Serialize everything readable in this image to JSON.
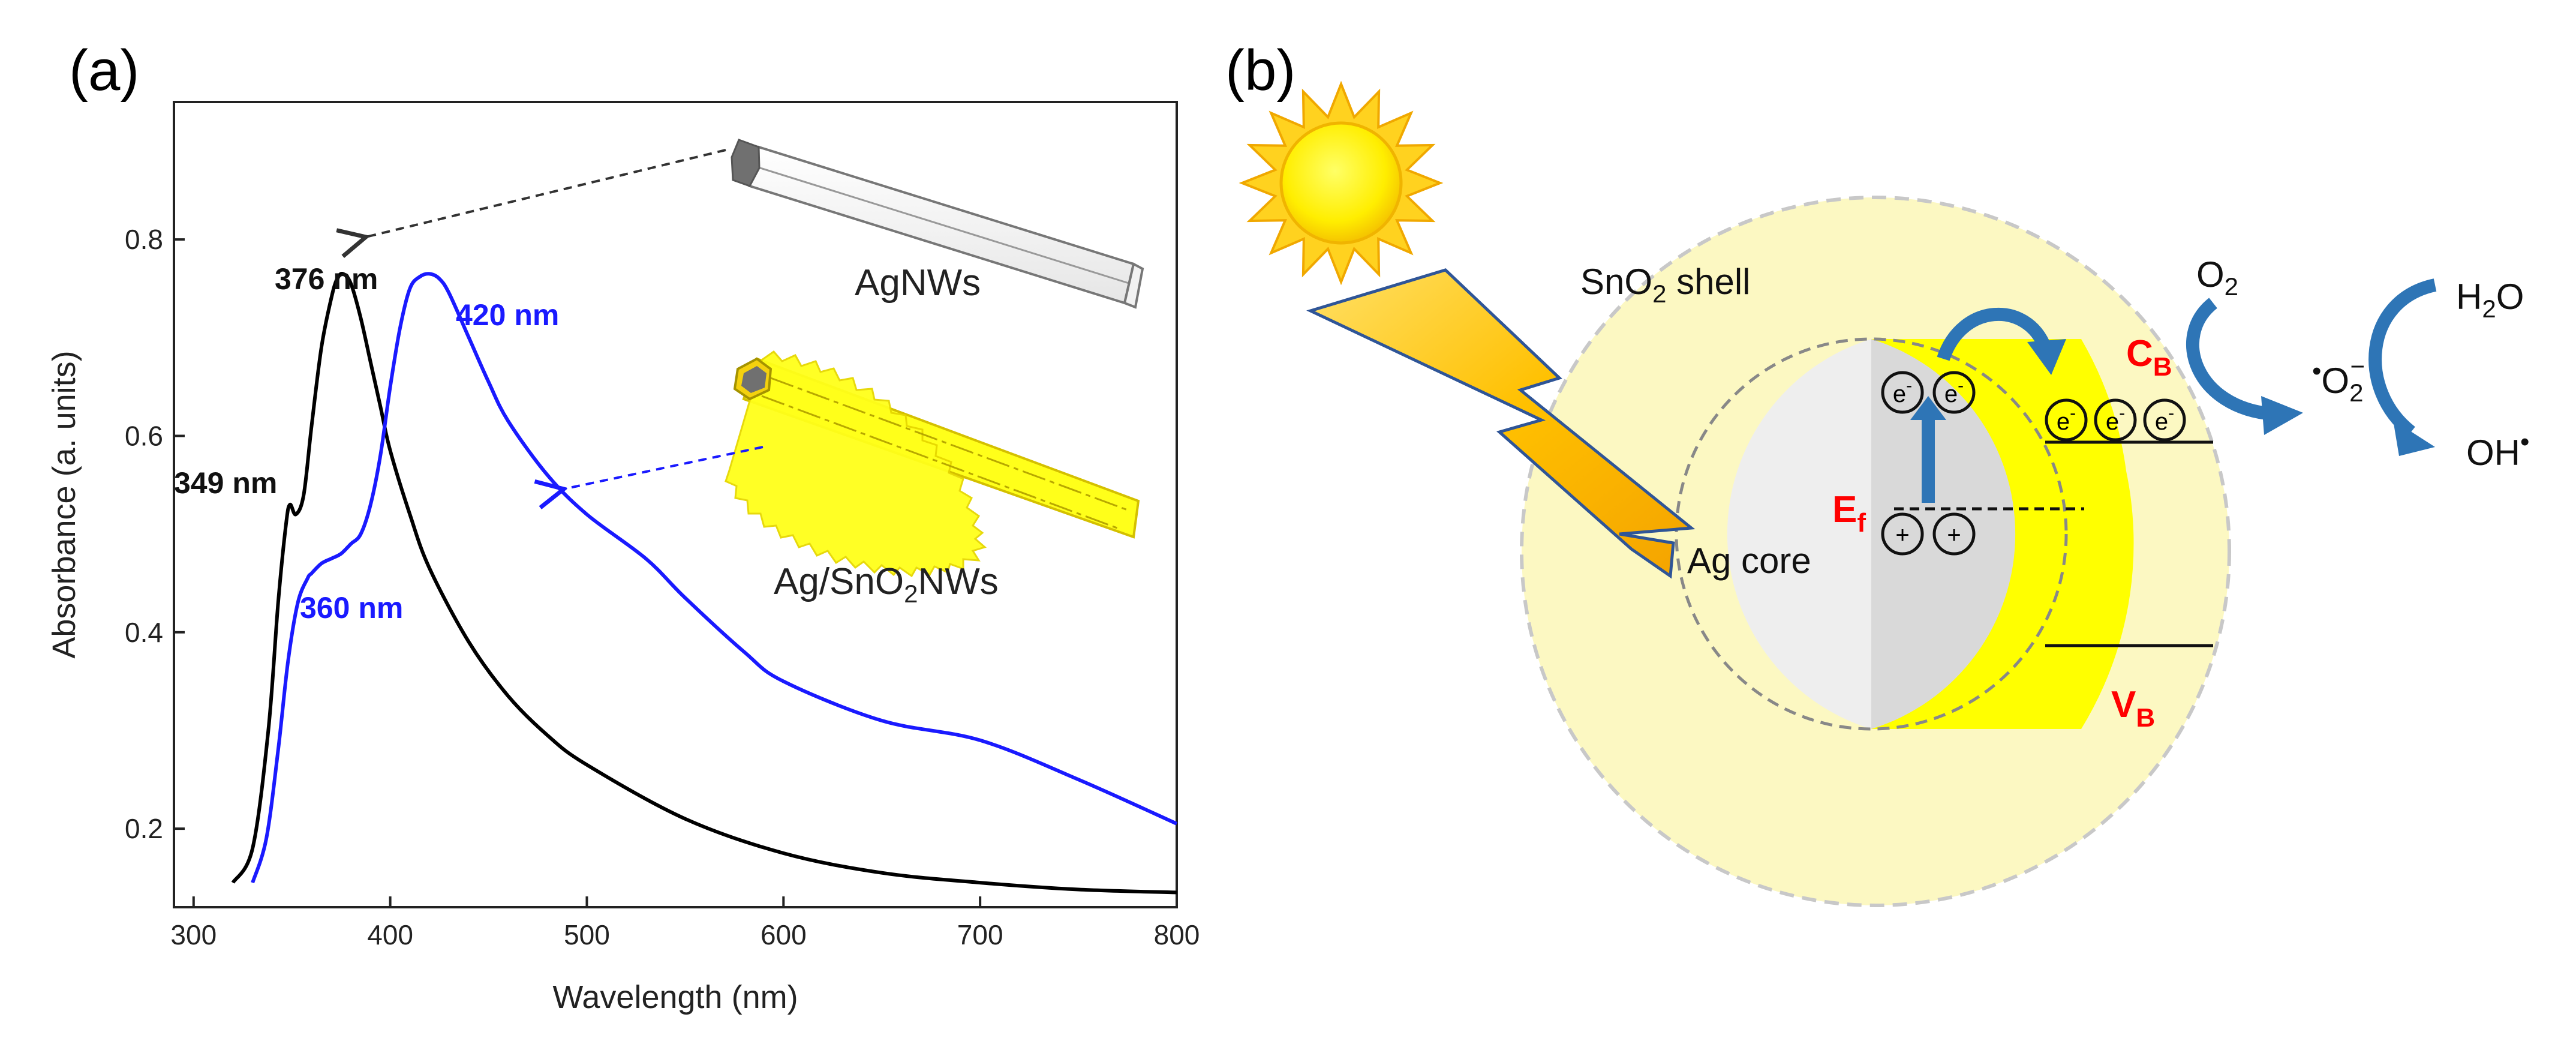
{
  "figure": {
    "panel_a_label": "(a)",
    "panel_b_label": "(b)"
  },
  "chart_data": {
    "type": "line",
    "xlabel": "Wavelength (nm)",
    "ylabel": "Absorbance (a. units)",
    "xlim": [
      290,
      800
    ],
    "ylim": [
      0.12,
      0.94
    ],
    "xticks": [
      300,
      400,
      500,
      600,
      700,
      800
    ],
    "yticks": [
      0.2,
      0.4,
      0.6,
      0.8
    ],
    "series": [
      {
        "name": "AgNWs",
        "color": "#000000",
        "x": [
          320,
          330,
          338,
          343,
          347,
          349,
          352,
          356,
          360,
          365,
          370,
          373,
          376,
          380,
          385,
          390,
          395,
          400,
          410,
          420,
          440,
          460,
          480,
          500,
          550,
          600,
          650,
          700,
          750,
          800
        ],
        "y": [
          0.145,
          0.18,
          0.3,
          0.43,
          0.51,
          0.53,
          0.52,
          0.54,
          0.61,
          0.69,
          0.74,
          0.76,
          0.765,
          0.755,
          0.72,
          0.675,
          0.63,
          0.585,
          0.52,
          0.465,
          0.39,
          0.335,
          0.295,
          0.265,
          0.21,
          0.175,
          0.155,
          0.145,
          0.138,
          0.135
        ]
      },
      {
        "name": "Ag/SnO2NWs",
        "color": "#1a1aff",
        "x": [
          330,
          337,
          343,
          348,
          353,
          358,
          360,
          365,
          370,
          375,
          380,
          385,
          390,
          395,
          400,
          405,
          410,
          415,
          420,
          425,
          430,
          440,
          450,
          460,
          480,
          500,
          530,
          550,
          580,
          600,
          650,
          700,
          750,
          800
        ],
        "y": [
          0.145,
          0.19,
          0.28,
          0.37,
          0.43,
          0.455,
          0.46,
          0.47,
          0.475,
          0.48,
          0.49,
          0.5,
          0.53,
          0.58,
          0.65,
          0.71,
          0.75,
          0.762,
          0.765,
          0.76,
          0.745,
          0.7,
          0.655,
          0.615,
          0.56,
          0.52,
          0.475,
          0.435,
          0.38,
          0.35,
          0.31,
          0.29,
          0.25,
          0.205
        ]
      }
    ],
    "annotations": [
      {
        "text": "376 nm",
        "series": "AgNWs",
        "x": 376,
        "y": 0.765
      },
      {
        "text": "349 nm",
        "series": "AgNWs",
        "x": 349,
        "y": 0.53
      },
      {
        "text": "420 nm",
        "series": "Ag/SnO2NWs",
        "x": 420,
        "y": 0.765
      },
      {
        "text": "360 nm",
        "series": "Ag/SnO2NWs",
        "x": 360,
        "y": 0.46
      }
    ],
    "insets": {
      "agnw_label": "AgNWs",
      "agsno2_label_main": "Ag/SnO",
      "agsno2_label_sub": "2",
      "agsno2_label_tail": "NWs"
    }
  },
  "diagram": {
    "shell_label_main": "SnO",
    "shell_label_sub": "2",
    "shell_label_tail": " shell",
    "core_label": "Ag core",
    "ef_main": "E",
    "ef_sub": "f",
    "cb_main": "C",
    "cb_sub": "B",
    "vb_main": "V",
    "vb_sub": "B",
    "electron": "e",
    "electron_sup": "-",
    "hole": "+",
    "o2_main": "O",
    "o2_sub": "2",
    "sup_o2_dot": "•",
    "sup_o2_main": "O",
    "sup_o2_sub": "2",
    "sup_o2_sup": "−",
    "h2o_main": "H",
    "h2o_sub": "2",
    "h2o_tail": "O",
    "oh_main": "OH",
    "oh_sup": "•",
    "colors": {
      "shell": "#fcf8c2",
      "band": "#ffff00",
      "core_light": "#eeeeee",
      "core_dark": "#d9d9d9",
      "arrow_blue": "#2e75b6",
      "accent_red": "#ff0000",
      "sun": "#ffd21f",
      "bolt": "#ffc000"
    }
  }
}
